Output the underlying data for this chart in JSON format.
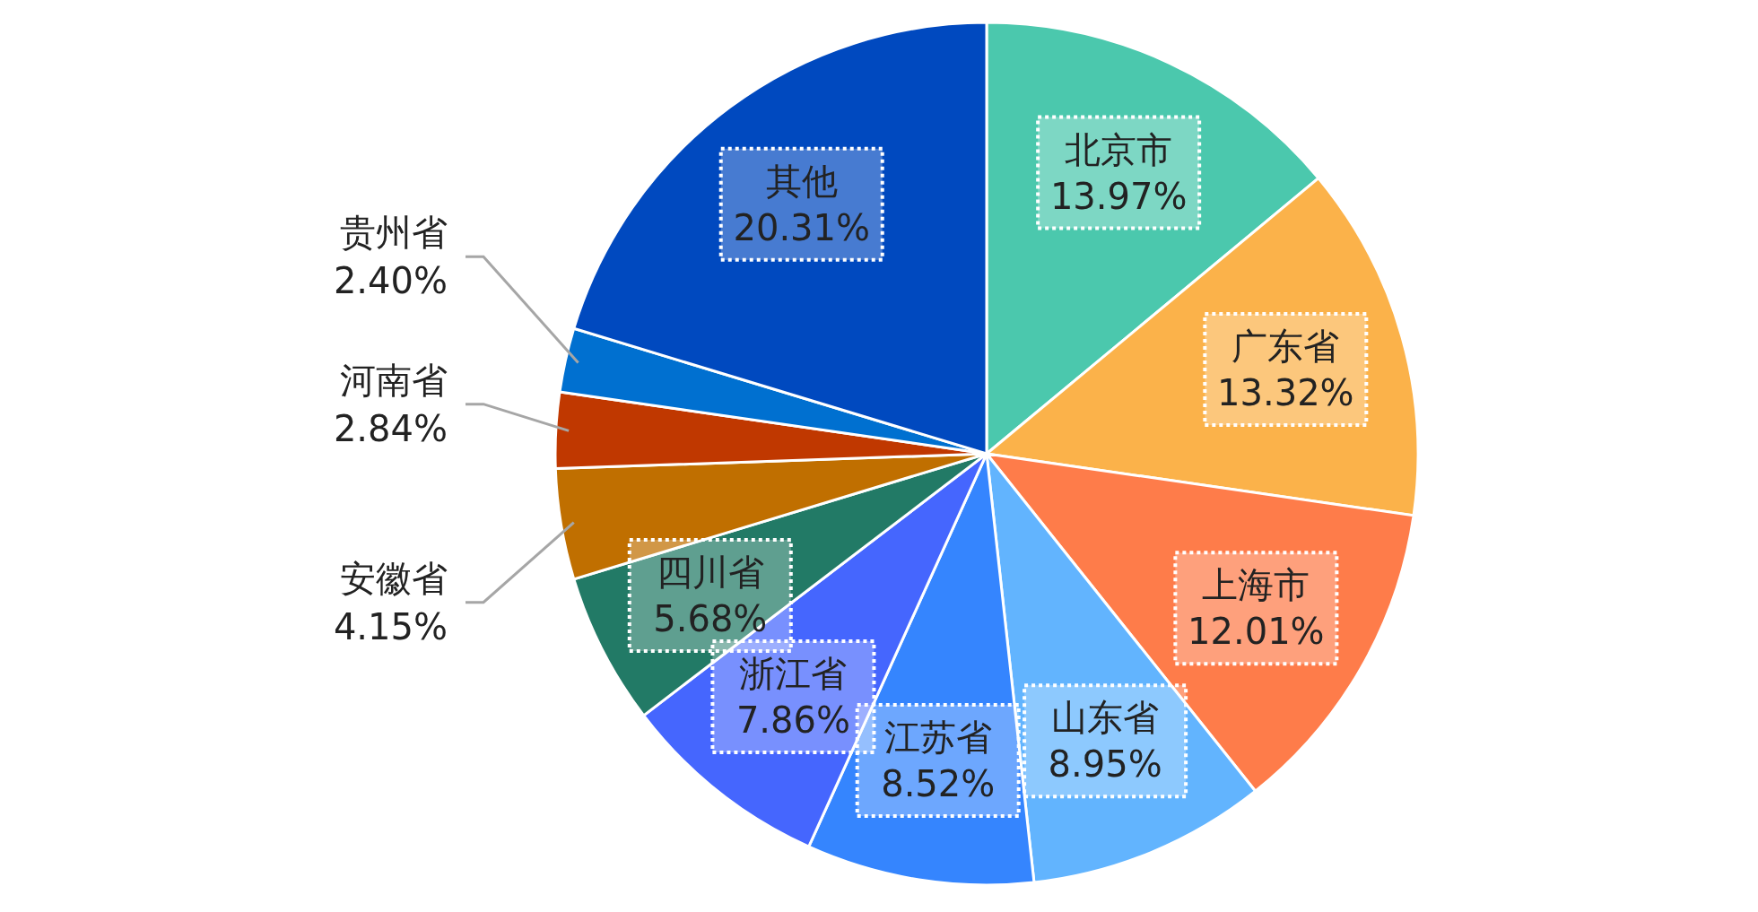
{
  "chart_data": {
    "type": "pie",
    "categories": [
      "北京市",
      "广东省",
      "上海市",
      "山东省",
      "江苏省",
      "浙江省",
      "四川省",
      "安徽省",
      "河南省",
      "贵州省",
      "其他"
    ],
    "values": [
      13.97,
      13.32,
      12.01,
      8.95,
      8.52,
      7.86,
      5.68,
      4.15,
      2.84,
      2.4,
      20.31
    ],
    "value_labels": [
      "13.97%",
      "13.32%",
      "12.01%",
      "8.95%",
      "8.52%",
      "7.86%",
      "5.68%",
      "4.15%",
      "2.84%",
      "2.40%",
      "20.31%"
    ],
    "colors": [
      "#4bc8ad",
      "#fbb24a",
      "#fe7c4a",
      "#62b4fe",
      "#3585fe",
      "#4566fe",
      "#227a66",
      "#c06f00",
      "#c03800",
      "#0070d0",
      "#0049bf"
    ]
  }
}
